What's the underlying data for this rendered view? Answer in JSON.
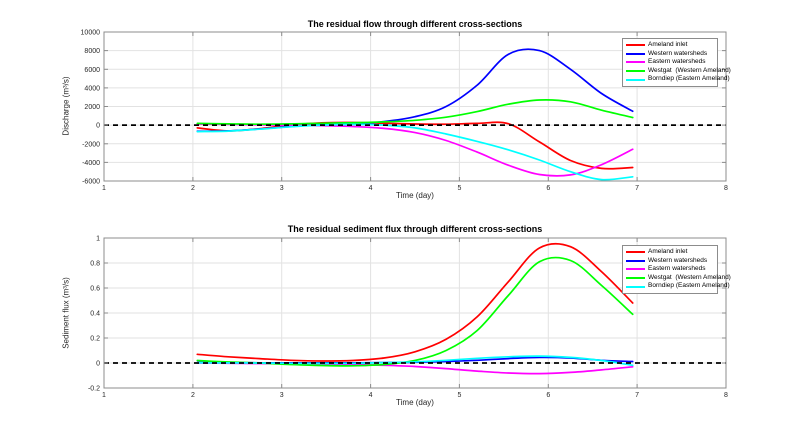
{
  "figure": {
    "background": "#ffffff",
    "grid_color": "#e2e2e2",
    "axis_color": "#8c8c8c"
  },
  "chart_data": [
    {
      "type": "line",
      "title": "The residual flow through different cross-sections",
      "xlabel": "Time (day)",
      "ylabel": "Discharge (m³/s)",
      "xlim": [
        1,
        8
      ],
      "ylim": [
        -6000,
        10000
      ],
      "xticks": [
        1,
        2,
        3,
        4,
        5,
        6,
        7,
        8
      ],
      "xtick_labels": [
        "1",
        "2",
        "3",
        "4",
        "5",
        "6",
        "7",
        "8"
      ],
      "yticks": [
        -6000,
        -4000,
        -2000,
        0,
        2000,
        4000,
        6000,
        8000,
        10000
      ],
      "ytick_labels": [
        "-6000",
        "-4000",
        "-2000",
        "0",
        "2000",
        "4000",
        "6000",
        "8000",
        "10000"
      ],
      "grid": true,
      "legend_position": "top-right",
      "zero_line": {
        "style": "dashed",
        "color": "#000000"
      },
      "x": [
        2.05,
        2.4,
        2.75,
        3.1,
        3.45,
        3.8,
        4.15,
        4.5,
        4.85,
        5.2,
        5.55,
        5.9,
        6.25,
        6.6,
        6.95
      ],
      "series": [
        {
          "name": "Ameland inlet",
          "color": "#ff0000",
          "values": [
            -300,
            -620,
            -380,
            0,
            250,
            280,
            200,
            120,
            100,
            180,
            150,
            -1800,
            -3800,
            -4650,
            -4550
          ]
        },
        {
          "name": "Western watersheds",
          "color": "#0000ff",
          "values": [
            -650,
            -620,
            -420,
            -150,
            30,
            120,
            380,
            900,
            2000,
            4300,
            7600,
            8000,
            6000,
            3400,
            1500
          ]
        },
        {
          "name": "Eastern watersheds",
          "color": "#ff00ff",
          "values": [
            120,
            80,
            30,
            -20,
            -60,
            -150,
            -350,
            -800,
            -1650,
            -2900,
            -4300,
            -5300,
            -5350,
            -4250,
            -2600
          ]
        },
        {
          "name": "Westgat  (Western Ameland)",
          "color": "#00ff00",
          "values": [
            180,
            130,
            100,
            130,
            200,
            260,
            350,
            520,
            850,
            1450,
            2250,
            2700,
            2500,
            1600,
            820
          ]
        },
        {
          "name": "Borndiep (Eastern Ameland)",
          "color": "#00ffff",
          "values": [
            -700,
            -640,
            -440,
            -180,
            0,
            80,
            0,
            -300,
            -950,
            -1750,
            -2650,
            -3750,
            -5000,
            -5850,
            -5550
          ]
        }
      ]
    },
    {
      "type": "line",
      "title": "The residual sediment flux through different cross-sections",
      "xlabel": "Time (day)",
      "ylabel": "Sediment flux (m³/s)",
      "xlim": [
        1,
        8
      ],
      "ylim": [
        -0.2,
        1
      ],
      "xticks": [
        1,
        2,
        3,
        4,
        5,
        6,
        7,
        8
      ],
      "xtick_labels": [
        "1",
        "2",
        "3",
        "4",
        "5",
        "6",
        "7",
        "8"
      ],
      "yticks": [
        -0.2,
        0,
        0.2,
        0.4,
        0.6,
        0.8,
        1
      ],
      "ytick_labels": [
        "-0.2",
        "0",
        "0.2",
        "0.4",
        "0.6",
        "0.8",
        "1"
      ],
      "grid": true,
      "legend_position": "top-right",
      "zero_line": {
        "style": "dashed",
        "color": "#000000"
      },
      "x": [
        2.05,
        2.4,
        2.75,
        3.1,
        3.45,
        3.8,
        4.15,
        4.5,
        4.85,
        5.2,
        5.55,
        5.9,
        6.25,
        6.6,
        6.95
      ],
      "series": [
        {
          "name": "Ameland inlet",
          "color": "#ff0000",
          "values": [
            0.07,
            0.05,
            0.035,
            0.022,
            0.016,
            0.02,
            0.04,
            0.09,
            0.19,
            0.37,
            0.65,
            0.92,
            0.93,
            0.73,
            0.48
          ]
        },
        {
          "name": "Western watersheds",
          "color": "#0000ff",
          "values": [
            0.004,
            0.003,
            0.002,
            0.002,
            0.002,
            0.002,
            0.003,
            0.006,
            0.012,
            0.022,
            0.035,
            0.045,
            0.04,
            0.022,
            0.012
          ]
        },
        {
          "name": "Eastern watersheds",
          "color": "#ff00ff",
          "values": [
            0,
            -0.002,
            -0.004,
            -0.007,
            -0.01,
            -0.013,
            -0.018,
            -0.028,
            -0.045,
            -0.065,
            -0.08,
            -0.085,
            -0.075,
            -0.055,
            -0.03
          ]
        },
        {
          "name": "Westgat  (Western Ameland)",
          "color": "#00ff00",
          "values": [
            0.02,
            0.008,
            0,
            -0.012,
            -0.02,
            -0.022,
            -0.012,
            0.02,
            0.1,
            0.26,
            0.54,
            0.81,
            0.82,
            0.62,
            0.39
          ]
        },
        {
          "name": "Borndiep (Eastern Ameland)",
          "color": "#00ffff",
          "values": [
            0.002,
            0.001,
            0,
            -0.002,
            -0.003,
            -0.002,
            0.003,
            0.01,
            0.022,
            0.038,
            0.05,
            0.055,
            0.045,
            0.02,
            -0.018
          ]
        }
      ]
    }
  ]
}
